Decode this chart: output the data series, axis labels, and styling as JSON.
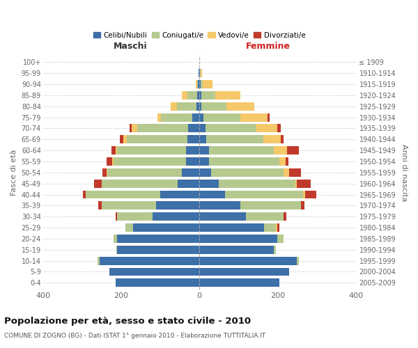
{
  "age_groups": [
    "0-4",
    "5-9",
    "10-14",
    "15-19",
    "20-24",
    "25-29",
    "30-34",
    "35-39",
    "40-44",
    "45-49",
    "50-54",
    "55-59",
    "60-64",
    "65-69",
    "70-74",
    "75-79",
    "80-84",
    "85-89",
    "90-94",
    "95-99",
    "100+"
  ],
  "birth_years": [
    "2005-2009",
    "2000-2004",
    "1995-1999",
    "1990-1994",
    "1985-1989",
    "1980-1984",
    "1975-1979",
    "1970-1974",
    "1965-1969",
    "1960-1964",
    "1955-1959",
    "1950-1954",
    "1945-1949",
    "1940-1944",
    "1935-1939",
    "1930-1934",
    "1925-1929",
    "1920-1924",
    "1915-1919",
    "1910-1914",
    "≤ 1909"
  ],
  "males": {
    "celibi": [
      215,
      230,
      255,
      210,
      210,
      170,
      120,
      110,
      100,
      55,
      45,
      35,
      35,
      30,
      28,
      18,
      8,
      5,
      3,
      2,
      0
    ],
    "coniugati": [
      0,
      0,
      5,
      3,
      10,
      20,
      90,
      140,
      190,
      195,
      190,
      185,
      175,
      155,
      130,
      80,
      50,
      25,
      2,
      0,
      0
    ],
    "vedovi": [
      0,
      0,
      0,
      0,
      0,
      0,
      0,
      0,
      0,
      0,
      3,
      3,
      5,
      10,
      15,
      10,
      15,
      15,
      5,
      0,
      0
    ],
    "divorziati": [
      0,
      0,
      0,
      0,
      0,
      0,
      5,
      8,
      8,
      20,
      10,
      15,
      10,
      8,
      5,
      0,
      0,
      0,
      0,
      0,
      0
    ]
  },
  "females": {
    "nubili": [
      205,
      230,
      250,
      190,
      200,
      165,
      120,
      105,
      65,
      50,
      30,
      25,
      25,
      18,
      15,
      10,
      5,
      5,
      3,
      2,
      0
    ],
    "coniugate": [
      0,
      0,
      5,
      5,
      15,
      30,
      95,
      155,
      200,
      195,
      185,
      180,
      165,
      145,
      130,
      95,
      65,
      35,
      5,
      2,
      0
    ],
    "vedove": [
      0,
      0,
      0,
      0,
      0,
      5,
      0,
      0,
      5,
      5,
      15,
      15,
      35,
      45,
      55,
      70,
      70,
      65,
      25,
      3,
      0
    ],
    "divorziate": [
      0,
      0,
      0,
      0,
      0,
      5,
      8,
      8,
      30,
      35,
      30,
      8,
      30,
      8,
      8,
      5,
      0,
      0,
      0,
      0,
      0
    ]
  },
  "colors": {
    "celibi": "#3d6fa8",
    "coniugati": "#b5c98e",
    "vedovi": "#f5c869",
    "divorziati": "#c0392b"
  },
  "title": "Popolazione per età, sesso e stato civile - 2010",
  "subtitle": "COMUNE DI ZOGNO (BG) - Dati ISTAT 1° gennaio 2010 - Elaborazione TUTTITALIA.IT",
  "xlabel_left": "Maschi",
  "xlabel_right": "Femmine",
  "ylabel_left": "Fasce di età",
  "ylabel_right": "Anni di nascita",
  "xlim": 400,
  "legend_labels": [
    "Celibi/Nubili",
    "Coniugati/e",
    "Vedovi/e",
    "Divorziati/e"
  ],
  "background_color": "#ffffff",
  "bar_height": 0.75
}
